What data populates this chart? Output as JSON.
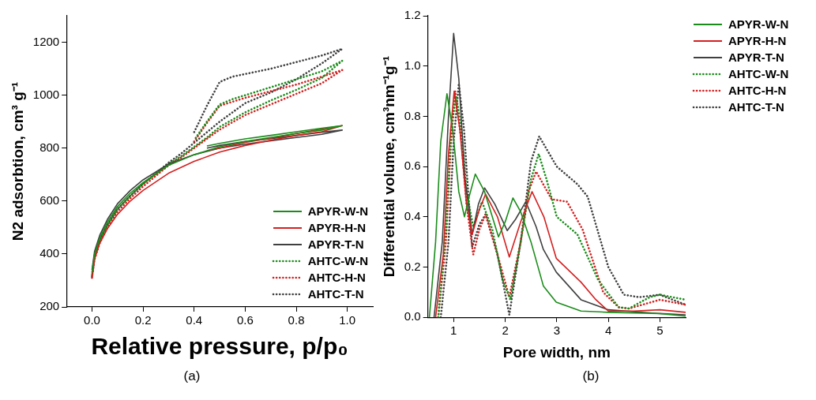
{
  "chart_data": [
    {
      "type": "line",
      "xlabel": "Relative pressure, p/p₀",
      "ylabel": "N2 adsorbtion, cm³ g⁻¹",
      "annotations": [
        "(a)"
      ],
      "xlim": [
        -0.1,
        1.1
      ],
      "ylim": [
        200,
        1300
      ],
      "xticks": [
        {
          "value": 0,
          "label": "0.0"
        },
        0.2,
        0.4,
        0.6,
        0.8,
        {
          "value": 1,
          "label": "1.0"
        }
      ],
      "yticks": [
        200,
        400,
        600,
        800,
        1000,
        1200
      ],
      "grid": false,
      "legend": "bottom right",
      "series": [
        {
          "name": "APYR-W-N",
          "color": "#1a8c1a",
          "line_style": "solid",
          "x": [
            0,
            0.01,
            0.03,
            0.06,
            0.1,
            0.15,
            0.2,
            0.3,
            0.4,
            0.5,
            0.6,
            0.7,
            0.8,
            0.9,
            0.98,
            0.9,
            0.8,
            0.7,
            0.6,
            0.5,
            0.45
          ],
          "values": [
            330,
            400,
            460,
            520,
            580,
            630,
            670,
            735,
            775,
            805,
            825,
            840,
            855,
            868,
            885,
            875,
            862,
            848,
            835,
            818,
            808
          ]
        },
        {
          "name": "APYR-H-N",
          "color": "#d42020",
          "line_style": "solid",
          "x": [
            0,
            0.01,
            0.03,
            0.06,
            0.1,
            0.15,
            0.2,
            0.3,
            0.4,
            0.5,
            0.6,
            0.7,
            0.8,
            0.9,
            0.98,
            0.9,
            0.8,
            0.7,
            0.6,
            0.5,
            0.45
          ],
          "values": [
            310,
            380,
            440,
            495,
            550,
            600,
            640,
            705,
            750,
            785,
            810,
            830,
            848,
            862,
            885,
            872,
            855,
            838,
            822,
            800,
            790
          ]
        },
        {
          "name": "APYR-T-N",
          "color": "#404040",
          "line_style": "solid",
          "x": [
            0,
            0.01,
            0.03,
            0.06,
            0.1,
            0.15,
            0.2,
            0.3,
            0.4,
            0.5,
            0.6,
            0.7,
            0.8,
            0.9,
            0.98,
            0.9,
            0.8,
            0.7,
            0.6,
            0.5,
            0.45
          ],
          "values": [
            340,
            410,
            470,
            530,
            590,
            640,
            680,
            740,
            775,
            800,
            815,
            828,
            840,
            852,
            868,
            860,
            848,
            836,
            825,
            810,
            800
          ]
        },
        {
          "name": "AHTC-W-N",
          "color": "#1a8c1a",
          "line_style": "dotted",
          "x": [
            0,
            0.01,
            0.03,
            0.06,
            0.1,
            0.15,
            0.2,
            0.3,
            0.35,
            0.4,
            0.45,
            0.5,
            0.6,
            0.7,
            0.8,
            0.9,
            0.98,
            0.9,
            0.8,
            0.7,
            0.6,
            0.55,
            0.5,
            0.45,
            0.4
          ],
          "values": [
            320,
            390,
            450,
            510,
            570,
            620,
            665,
            740,
            770,
            805,
            840,
            880,
            935,
            980,
            1020,
            1065,
            1130,
            1090,
            1060,
            1030,
            1000,
            985,
            965,
            900,
            830
          ]
        },
        {
          "name": "AHTC-H-N",
          "color": "#d42020",
          "line_style": "dotted",
          "x": [
            0,
            0.01,
            0.03,
            0.06,
            0.1,
            0.15,
            0.2,
            0.3,
            0.35,
            0.4,
            0.45,
            0.5,
            0.6,
            0.7,
            0.8,
            0.9,
            0.98,
            0.9,
            0.8,
            0.7,
            0.6,
            0.55,
            0.5,
            0.45,
            0.4
          ],
          "values": [
            310,
            380,
            440,
            500,
            560,
            610,
            655,
            735,
            765,
            800,
            835,
            870,
            925,
            965,
            1005,
            1045,
            1095,
            1070,
            1040,
            1015,
            990,
            975,
            960,
            895,
            825
          ]
        },
        {
          "name": "AHTC-T-N",
          "color": "#404040",
          "line_style": "dotted",
          "x": [
            0,
            0.01,
            0.03,
            0.06,
            0.1,
            0.15,
            0.2,
            0.3,
            0.35,
            0.4,
            0.45,
            0.5,
            0.6,
            0.7,
            0.8,
            0.9,
            0.98,
            0.9,
            0.8,
            0.7,
            0.6,
            0.55,
            0.5,
            0.45,
            0.4
          ],
          "values": [
            315,
            390,
            450,
            510,
            570,
            620,
            665,
            745,
            780,
            820,
            860,
            900,
            970,
            1010,
            1060,
            1120,
            1175,
            1150,
            1125,
            1100,
            1080,
            1070,
            1050,
            960,
            860
          ]
        }
      ]
    },
    {
      "type": "line",
      "xlabel": "Pore width, nm",
      "ylabel": "Differential volume, cm³nm⁻¹g⁻¹",
      "annotations": [
        "(b)"
      ],
      "xlim": [
        0.5,
        5.5
      ],
      "ylim": [
        0,
        1.2
      ],
      "xticks": [
        1,
        2,
        3,
        4,
        5
      ],
      "yticks": [
        {
          "value": 0,
          "label": "0.0"
        },
        0.2,
        0.4,
        0.6,
        0.8,
        {
          "value": 1,
          "label": "1.0"
        },
        1.2
      ],
      "grid": false,
      "legend": "top right",
      "series": [
        {
          "name": "APYR-W-N",
          "color": "#1a8c1a",
          "line_style": "solid",
          "x": [
            0.53,
            0.65,
            0.75,
            0.87,
            0.98,
            1.1,
            1.21,
            1.3,
            1.42,
            1.6,
            1.87,
            2.0,
            2.15,
            2.3,
            2.5,
            2.74,
            2.99,
            3.47,
            4,
            5,
            5.5
          ],
          "values": [
            0,
            0.3,
            0.7,
            0.89,
            0.75,
            0.5,
            0.4,
            0.48,
            0.57,
            0.5,
            0.32,
            0.38,
            0.475,
            0.42,
            0.3,
            0.125,
            0.06,
            0.025,
            0.02,
            0.015,
            0.005
          ]
        },
        {
          "name": "APYR-H-N",
          "color": "#d42020",
          "line_style": "solid",
          "x": [
            0.65,
            0.8,
            0.9,
            1.01,
            1.12,
            1.25,
            1.36,
            1.5,
            1.62,
            1.85,
            2.08,
            2.3,
            2.52,
            2.75,
            2.99,
            3.47,
            3.76,
            4,
            4.5,
            5,
            5.5
          ],
          "values": [
            0,
            0.25,
            0.65,
            0.9,
            0.75,
            0.45,
            0.33,
            0.43,
            0.49,
            0.4,
            0.24,
            0.38,
            0.5,
            0.4,
            0.235,
            0.14,
            0.07,
            0.025,
            0.025,
            0.03,
            0.02
          ]
        },
        {
          "name": "APYR-T-N",
          "color": "#404040",
          "line_style": "solid",
          "x": [
            0.62,
            0.78,
            0.9,
            1.0,
            1.1,
            1.22,
            1.36,
            1.48,
            1.6,
            1.8,
            2.04,
            2.2,
            2.4,
            2.6,
            2.74,
            2.99,
            3.47,
            4,
            5,
            5.5
          ],
          "values": [
            0,
            0.3,
            0.8,
            1.13,
            0.95,
            0.55,
            0.33,
            0.45,
            0.515,
            0.45,
            0.345,
            0.39,
            0.46,
            0.36,
            0.27,
            0.18,
            0.07,
            0.03,
            0.015,
            0.01
          ]
        },
        {
          "name": "AHTC-W-N",
          "color": "#1a8c1a",
          "line_style": "dotted",
          "x": [
            0.7,
            0.85,
            0.95,
            1.05,
            1.15,
            1.25,
            1.38,
            1.55,
            1.75,
            1.95,
            2.1,
            2.3,
            2.5,
            2.65,
            2.8,
            3.0,
            3.4,
            3.8,
            4.2,
            4.4,
            4.8,
            5.0,
            5.5
          ],
          "values": [
            0,
            0.35,
            0.75,
            0.88,
            0.75,
            0.5,
            0.36,
            0.46,
            0.35,
            0.15,
            0.07,
            0.3,
            0.55,
            0.65,
            0.55,
            0.4,
            0.33,
            0.15,
            0.04,
            0.035,
            0.08,
            0.09,
            0.07
          ]
        },
        {
          "name": "AHTC-H-N",
          "color": "#d42020",
          "line_style": "dotted",
          "x": [
            0.7,
            0.85,
            0.95,
            1.03,
            1.15,
            1.25,
            1.38,
            1.5,
            1.62,
            1.85,
            2.08,
            2.3,
            2.45,
            2.6,
            2.9,
            3.2,
            3.5,
            3.9,
            4.2,
            4.4,
            5.0,
            5.5
          ],
          "values": [
            0,
            0.3,
            0.7,
            0.9,
            0.7,
            0.45,
            0.25,
            0.35,
            0.41,
            0.25,
            0.08,
            0.3,
            0.5,
            0.58,
            0.47,
            0.46,
            0.35,
            0.1,
            0.04,
            0.035,
            0.07,
            0.05
          ]
        },
        {
          "name": "AHTC-T-N",
          "color": "#404040",
          "line_style": "dotted",
          "x": [
            0.75,
            0.9,
            1.0,
            1.1,
            1.2,
            1.28,
            1.36,
            1.5,
            1.62,
            1.85,
            2.08,
            2.3,
            2.5,
            2.66,
            3.0,
            3.4,
            3.6,
            4.0,
            4.3,
            4.6,
            5.0,
            5.5
          ],
          "values": [
            0,
            0.3,
            0.7,
            0.93,
            0.75,
            0.5,
            0.28,
            0.37,
            0.41,
            0.25,
            0.01,
            0.3,
            0.62,
            0.72,
            0.6,
            0.53,
            0.48,
            0.2,
            0.09,
            0.08,
            0.09,
            0.05
          ]
        }
      ]
    }
  ]
}
